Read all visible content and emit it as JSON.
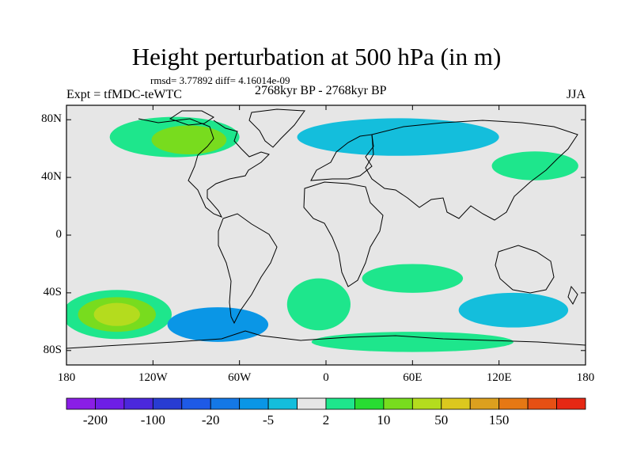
{
  "title": "Height perturbation at 500 hPa (in m)",
  "stats": "rmsd= 3.77892 diff= 4.16014e-09",
  "experiment": "Expt = tfMDC-teWTC",
  "period": "2768kyr BP - 2768kyr BP",
  "season": "JJA",
  "axes": {
    "y_ticks": [
      {
        "label": "80N",
        "lat": 80
      },
      {
        "label": "40N",
        "lat": 40
      },
      {
        "label": "0",
        "lat": 0
      },
      {
        "label": "40S",
        "lat": -40
      },
      {
        "label": "80S",
        "lat": -80
      }
    ],
    "x_ticks": [
      {
        "label": "180",
        "lon": -180
      },
      {
        "label": "120W",
        "lon": -120
      },
      {
        "label": "60W",
        "lon": -60
      },
      {
        "label": "0",
        "lon": 0
      },
      {
        "label": "60E",
        "lon": 60
      },
      {
        "label": "120E",
        "lon": 120
      },
      {
        "label": "180",
        "lon": 180
      }
    ]
  },
  "colorbar": {
    "colors": [
      "#8a1ee6",
      "#6e1ee6",
      "#4b28dc",
      "#283cd2",
      "#1e5ae6",
      "#1478e6",
      "#0a96e6",
      "#14bedc",
      "#e6e6e6",
      "#1ee68c",
      "#28dc32",
      "#78dc1e",
      "#b4dc1e",
      "#dcc81e",
      "#dca01e",
      "#e67814",
      "#e65014",
      "#e62814"
    ],
    "labels": [
      "-200",
      "-100",
      "-20",
      "-5",
      "2",
      "10",
      "50",
      "150"
    ]
  },
  "map_regions": [
    {
      "name": "north-america-arctic-positive",
      "color": "#1ee68c",
      "lon": -105,
      "lat": 68,
      "rx": 45,
      "ry": 14
    },
    {
      "name": "canada-yellow-green-core",
      "color": "#b4dc1e",
      "lon": -88,
      "lat": 63,
      "rx": 13,
      "ry": 6
    },
    {
      "name": "canada-green-core",
      "color": "#78dc1e",
      "lon": -95,
      "lat": 66,
      "rx": 26,
      "ry": 10
    },
    {
      "name": "eurasia-arctic-negative",
      "color": "#14bedc",
      "lon": 50,
      "lat": 68,
      "rx": 70,
      "ry": 13
    },
    {
      "name": "east-asia-positive",
      "color": "#1ee68c",
      "lon": 145,
      "lat": 48,
      "rx": 30,
      "ry": 10
    },
    {
      "name": "south-pacific-positive",
      "color": "#1ee68c",
      "lon": -145,
      "lat": -55,
      "rx": 38,
      "ry": 17
    },
    {
      "name": "south-pacific-green",
      "color": "#78dc1e",
      "lon": -145,
      "lat": -55,
      "rx": 27,
      "ry": 12
    },
    {
      "name": "south-pacific-yellow",
      "color": "#b4dc1e",
      "lon": -145,
      "lat": -55,
      "rx": 16,
      "ry": 8
    },
    {
      "name": "south-atlantic-negative",
      "color": "#0a96e6",
      "lon": -75,
      "lat": -62,
      "rx": 35,
      "ry": 12
    },
    {
      "name": "south-atlantic-positive",
      "color": "#1ee68c",
      "lon": -5,
      "lat": -48,
      "rx": 22,
      "ry": 18
    },
    {
      "name": "south-indian-positive",
      "color": "#1ee68c",
      "lon": 60,
      "lat": -30,
      "rx": 35,
      "ry": 10
    },
    {
      "name": "southern-ocean-negative",
      "color": "#14bedc",
      "lon": 130,
      "lat": -52,
      "rx": 38,
      "ry": 12
    },
    {
      "name": "antarctic-positive",
      "color": "#1ee68c",
      "lon": 60,
      "lat": -74,
      "rx": 70,
      "ry": 7
    }
  ]
}
